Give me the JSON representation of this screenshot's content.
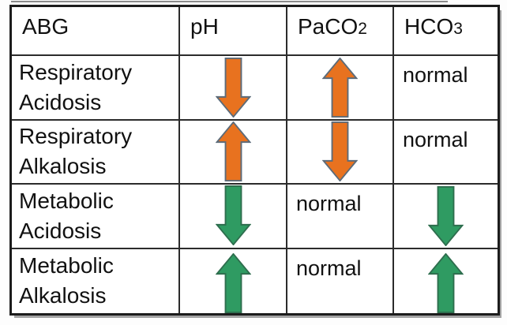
{
  "title": "ABG interpretation table",
  "colors": {
    "arrow_orange": "#E8721F",
    "arrow_orange_outline": "#5C6B79",
    "arrow_green": "#2F9B62",
    "arrow_green_outline": "#2E6E4E",
    "grid_border": "#1C1C1C",
    "text": "#111111",
    "shadow": "#A3A3A3",
    "table_background": "#FFFFFF"
  },
  "table": {
    "headers": [
      {
        "main": "ABG",
        "sub": ""
      },
      {
        "main": "pH",
        "sub": ""
      },
      {
        "main": "PaCO",
        "sub": "2"
      },
      {
        "main": "HCO",
        "sub": "3"
      }
    ],
    "rows": [
      {
        "label": [
          "Respiratory",
          "Acidosis"
        ],
        "cells": [
          {
            "dir": "down",
            "color": "orange",
            "align": "center"
          },
          {
            "dir": "up",
            "color": "orange",
            "align": "center"
          },
          {
            "text": "normal"
          }
        ]
      },
      {
        "label": [
          "Respiratory",
          "Alkalosis"
        ],
        "cells": [
          {
            "dir": "up",
            "color": "orange",
            "align": "center"
          },
          {
            "dir": "down",
            "color": "orange",
            "align": "center"
          },
          {
            "text": "normal"
          }
        ]
      },
      {
        "label": [
          "Metabolic",
          "Acidosis"
        ],
        "cells": [
          {
            "dir": "down",
            "color": "green",
            "align": "top"
          },
          {
            "text": "normal"
          },
          {
            "dir": "down",
            "color": "green",
            "align": "center"
          }
        ]
      },
      {
        "label": [
          "Metabolic",
          "Alkalosis"
        ],
        "cells": [
          {
            "dir": "up",
            "color": "green",
            "align": "bottom"
          },
          {
            "text": "normal"
          },
          {
            "dir": "up",
            "color": "green",
            "align": "bottom"
          }
        ]
      }
    ]
  }
}
